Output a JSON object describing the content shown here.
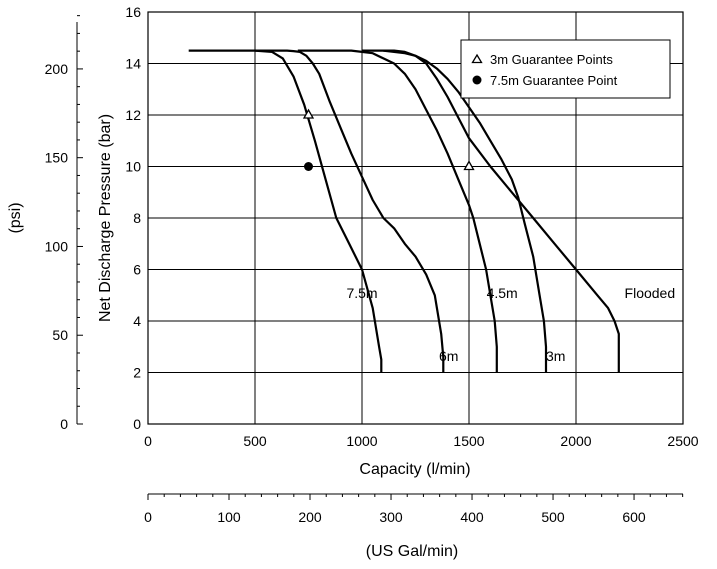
{
  "chart_data": {
    "type": "line",
    "xlabel": "Capacity (l/min)",
    "ylabel": "Net Discharge Pressure (bar)",
    "xlim": [
      0,
      2500
    ],
    "ylim": [
      0,
      16
    ],
    "x_ticks": [
      "0",
      "500",
      "1000",
      "1500",
      "2000",
      "2500"
    ],
    "y_ticks": [
      "0",
      "2",
      "4",
      "6",
      "8",
      "10",
      "12",
      "14",
      "16"
    ],
    "grid": true,
    "secondary_y": {
      "label": "(psi)",
      "ticks": [
        "0",
        "50",
        "100",
        "150",
        "200"
      ],
      "tick_values_bar": [
        0,
        3.447,
        6.895,
        10.342,
        13.79
      ]
    },
    "secondary_x": {
      "label": "(US Gal/min)",
      "ticks": [
        "0",
        "100",
        "200",
        "300",
        "400",
        "500",
        "600"
      ],
      "tick_values_lpm": [
        0,
        378.5,
        757.1,
        1135.6,
        1514.2,
        1892.7,
        2271.2
      ]
    },
    "series": [
      {
        "name": "7.5m",
        "x": [
          190,
          500,
          580,
          630,
          680,
          730,
          780,
          830,
          880,
          940,
          1000,
          1050,
          1080,
          1090,
          1090
        ],
        "y": [
          14.5,
          14.5,
          14.45,
          14.2,
          13.5,
          12.4,
          11.0,
          9.5,
          8.0,
          7.0,
          6.0,
          4.5,
          3.0,
          2.5,
          2.0
        ]
      },
      {
        "name": "6m",
        "x": [
          500,
          620,
          650,
          680,
          710,
          740,
          770,
          800,
          850,
          900,
          950,
          1000,
          1050,
          1100,
          1150,
          1200,
          1250,
          1300,
          1340,
          1370,
          1380,
          1380
        ],
        "y": [
          14.5,
          14.5,
          14.5,
          14.48,
          14.45,
          14.3,
          14.0,
          13.6,
          12.5,
          11.5,
          10.5,
          9.6,
          8.7,
          8.0,
          7.6,
          7.0,
          6.5,
          5.8,
          5.0,
          3.5,
          2.6,
          2.0
        ]
      },
      {
        "name": "4.5m",
        "x": [
          700,
          950,
          1000,
          1050,
          1100,
          1150,
          1200,
          1250,
          1300,
          1350,
          1400,
          1450,
          1500,
          1520,
          1550,
          1580,
          1600,
          1620,
          1630,
          1630
        ],
        "y": [
          14.5,
          14.5,
          14.45,
          14.4,
          14.2,
          14.0,
          13.6,
          13.0,
          12.2,
          11.4,
          10.5,
          9.5,
          8.5,
          8.0,
          7.0,
          6.0,
          5.0,
          4.0,
          3.0,
          2.0
        ]
      },
      {
        "name": "3m",
        "x": [
          1000,
          1100,
          1150,
          1200,
          1250,
          1300,
          1350,
          1400,
          1450,
          1500,
          1550,
          1600,
          1650,
          1700,
          1730,
          1760,
          1800,
          1830,
          1850,
          1860,
          1860
        ],
        "y": [
          14.5,
          14.5,
          14.5,
          14.45,
          14.3,
          14.1,
          13.8,
          13.4,
          12.9,
          12.3,
          11.7,
          11.0,
          10.3,
          9.5,
          8.8,
          7.8,
          6.5,
          5.0,
          4.0,
          3.0,
          2.0
        ]
      },
      {
        "name": "Flooded",
        "x": [
          1100,
          1150,
          1200,
          1250,
          1300,
          1350,
          1400,
          1450,
          1500,
          1600,
          1700,
          1800,
          1900,
          2000,
          2100,
          2150,
          2180,
          2200,
          2200
        ],
        "y": [
          14.5,
          14.45,
          14.4,
          14.3,
          14.0,
          13.4,
          12.7,
          11.9,
          11.1,
          10.0,
          9.0,
          8.0,
          7.0,
          6.0,
          5.0,
          4.5,
          4.0,
          3.5,
          2.0
        ]
      }
    ],
    "curve_labels": [
      {
        "text": "7.5m",
        "x": 1000,
        "y": 4.9
      },
      {
        "text": "6m",
        "x": 1405,
        "y": 2.45
      },
      {
        "text": "4.5m",
        "x": 1655,
        "y": 4.9
      },
      {
        "text": "3m",
        "x": 1905,
        "y": 2.45
      },
      {
        "text": "Flooded",
        "x": 2345,
        "y": 4.9
      }
    ],
    "points": [
      {
        "series": "3m Guarantee Points",
        "marker": "triangle",
        "x": 750,
        "y": 12
      },
      {
        "series": "3m Guarantee Points",
        "marker": "triangle",
        "x": 1500,
        "y": 10
      },
      {
        "series": "7.5m Guarantee Point",
        "marker": "circle",
        "x": 750,
        "y": 10
      }
    ],
    "legend": {
      "position": "top-right",
      "entries": [
        {
          "label": "3m Guarantee Points",
          "marker": "triangle"
        },
        {
          "label": "7.5m Guarantee Point",
          "marker": "circle"
        }
      ]
    },
    "colors": {
      "line": "#000000",
      "grid": "#000000",
      "background": "#ffffff"
    }
  }
}
